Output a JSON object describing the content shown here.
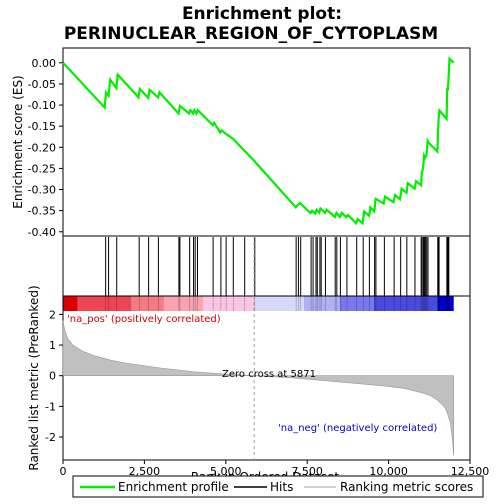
{
  "chart_data": {
    "type": "line",
    "title_line1": "Enrichment plot:",
    "title_line2": "PERINUCLEAR_REGION_OF_CYTOPLASM",
    "top_panel": {
      "ylabel": "Enrichment score (ES)",
      "ylim": [
        -0.41,
        0.035
      ],
      "yticks": [
        0.0,
        -0.05,
        -0.1,
        -0.15,
        -0.2,
        -0.25,
        -0.3,
        -0.35,
        -0.4
      ],
      "ytick_labels": [
        "0.00",
        "-0.05",
        "-0.10",
        "-0.15",
        "-0.20",
        "-0.25",
        "-0.30",
        "-0.35",
        "-0.40"
      ],
      "line_color": "#00ee00",
      "es_profile": {
        "x": [
          0,
          1280,
          1320,
          1400,
          1450,
          1640,
          1680,
          2320,
          2360,
          2620,
          2660,
          2920,
          2960,
          3550,
          3590,
          3870,
          3910,
          4000,
          4040,
          4100,
          4140,
          4600,
          4640,
          4830,
          4870,
          5000,
          5040,
          5220,
          5260,
          5870,
          7150,
          7200,
          7280,
          7600,
          7650,
          7750,
          7790,
          7870,
          7910,
          8050,
          8100,
          8350,
          8400,
          8500,
          8560,
          8700,
          8750,
          9000,
          9050,
          9200,
          9250,
          9400,
          9440,
          9560,
          9600,
          9850,
          9890,
          10150,
          10200,
          10350,
          10400,
          10550,
          10590,
          10800,
          10840,
          11000,
          11020,
          11060,
          11090,
          11120,
          11160,
          11200,
          11240,
          11500,
          11520,
          11540,
          11560,
          11780,
          11800,
          11820,
          11840,
          11870,
          12000
        ],
        "y": [
          0.0,
          -0.106,
          -0.07,
          -0.078,
          -0.04,
          -0.06,
          -0.028,
          -0.082,
          -0.062,
          -0.083,
          -0.064,
          -0.082,
          -0.07,
          -0.12,
          -0.102,
          -0.12,
          -0.112,
          -0.12,
          -0.112,
          -0.12,
          -0.112,
          -0.148,
          -0.142,
          -0.165,
          -0.16,
          -0.168,
          -0.17,
          -0.18,
          -0.183,
          -0.232,
          -0.342,
          -0.337,
          -0.332,
          -0.356,
          -0.35,
          -0.357,
          -0.348,
          -0.355,
          -0.345,
          -0.355,
          -0.348,
          -0.365,
          -0.355,
          -0.365,
          -0.355,
          -0.365,
          -0.36,
          -0.38,
          -0.37,
          -0.38,
          -0.352,
          -0.362,
          -0.342,
          -0.352,
          -0.322,
          -0.333,
          -0.317,
          -0.33,
          -0.313,
          -0.323,
          -0.298,
          -0.308,
          -0.285,
          -0.298,
          -0.28,
          -0.29,
          -0.26,
          -0.25,
          -0.22,
          -0.225,
          -0.22,
          -0.185,
          -0.19,
          -0.21,
          -0.16,
          -0.13,
          -0.113,
          -0.133,
          -0.06,
          -0.065,
          -0.04,
          0.01,
          0.0
        ]
      },
      "hits": [
        1310,
        1400,
        1650,
        2340,
        2630,
        2930,
        3560,
        3590,
        3890,
        4010,
        4060,
        4130,
        4610,
        4850,
        5010,
        5230,
        5580,
        5890,
        7160,
        7230,
        7300,
        7620,
        7680,
        7770,
        7810,
        7890,
        7930,
        8060,
        8360,
        8410,
        8520,
        8720,
        9020,
        9220,
        9410,
        9570,
        9610,
        9870,
        10170,
        10370,
        10560,
        10810,
        11000,
        11030,
        11070,
        11100,
        11130,
        11170,
        11210,
        11510,
        11530,
        11550,
        11790,
        11810,
        11830,
        11850
      ]
    },
    "bottom_panel": {
      "ylabel": "Ranked list metric (PreRanked)",
      "xlabel": "Rank in Ordered Dataset",
      "xlim": [
        0,
        12500
      ],
      "ylim": [
        -2.75,
        2.6
      ],
      "xticks": [
        0,
        2500,
        5000,
        7500,
        10000,
        12500
      ],
      "xtick_labels": [
        "0",
        "2,500",
        "5,000",
        "7,500",
        "10,000",
        "12,500"
      ],
      "yticks": [
        2,
        1,
        0,
        -1,
        -2
      ],
      "ytick_labels": [
        "2",
        "1",
        "0",
        "-1",
        "-2"
      ],
      "zero_cross_label": "Zero cross at 5871",
      "zero_cross_rank": 5871,
      "pos_label": "'na_pos' (positively correlated)",
      "neg_label": "'na_neg' (negatively correlated)",
      "metric_curve": {
        "x": [
          0,
          50,
          150,
          300,
          600,
          1000,
          1500,
          2000,
          3000,
          4000,
          5000,
          5871,
          7000,
          8000,
          9000,
          10000,
          10500,
          11000,
          11300,
          11500,
          11700,
          11800,
          11900,
          11950,
          12000
        ],
        "y": [
          1.8,
          1.5,
          1.2,
          1.0,
          0.8,
          0.64,
          0.5,
          0.4,
          0.25,
          0.13,
          0.05,
          0.0,
          -0.07,
          -0.16,
          -0.25,
          -0.35,
          -0.42,
          -0.55,
          -0.66,
          -0.8,
          -1.0,
          -1.2,
          -1.55,
          -2.0,
          -2.6
        ]
      },
      "color_bar": {
        "segments": [
          {
            "from": 0,
            "to": 450,
            "color": "#dd0000"
          },
          {
            "from": 450,
            "to": 2100,
            "color": "#ee4455"
          },
          {
            "from": 2100,
            "to": 3100,
            "color": "#f47a85"
          },
          {
            "from": 3100,
            "to": 4300,
            "color": "#f9a3b0"
          },
          {
            "from": 4300,
            "to": 5871,
            "color": "#fbc6e6"
          },
          {
            "from": 5871,
            "to": 7400,
            "color": "#d8d8fb"
          },
          {
            "from": 7400,
            "to": 8500,
            "color": "#b0b0f5"
          },
          {
            "from": 8500,
            "to": 9550,
            "color": "#7878ee"
          },
          {
            "from": 9550,
            "to": 11500,
            "color": "#4a4ae0"
          },
          {
            "from": 11500,
            "to": 12000,
            "color": "#0000cc"
          }
        ]
      }
    },
    "legend": {
      "items": [
        {
          "label": "Enrichment profile",
          "color": "#00ee00"
        },
        {
          "label": "Hits",
          "color": "#000000"
        },
        {
          "label": "Ranking metric scores",
          "color": "#c0c0c0"
        }
      ]
    }
  }
}
